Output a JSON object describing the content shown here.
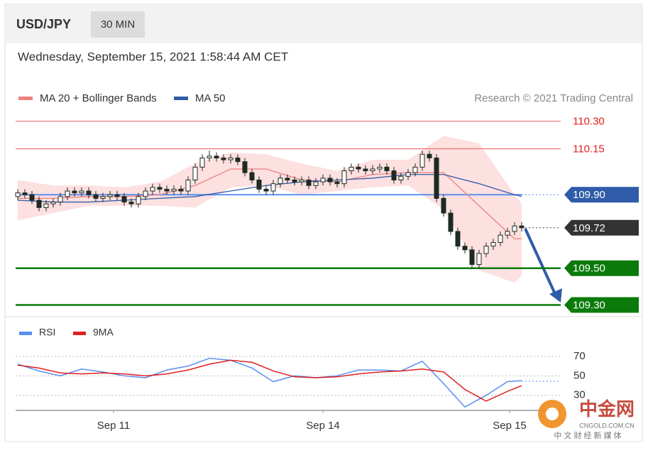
{
  "header": {
    "symbol": "USD/JPY",
    "timeframe": "30 MIN",
    "timestamp": "Wednesday, September 15, 2021 1:58:44 AM CET"
  },
  "watermark": {
    "name": "中金网",
    "site": "CNGOLD.COM.CN",
    "slogan": "中 文 财 经 新 媒 体"
  },
  "chart_data": [
    {
      "type": "candlestick",
      "credit": "Research © 2021 Trading Central",
      "xlim": [
        -0.3,
        76.5
      ],
      "ylim": [
        109.24,
        110.38
      ],
      "up_color": "#ffffff",
      "down_color": "#1e2a22",
      "candles": {
        "x": [
          0,
          1,
          2,
          3,
          4,
          5,
          6,
          7,
          8,
          9,
          10,
          11,
          12,
          13,
          14,
          15,
          16,
          17,
          18,
          19,
          20,
          21,
          22,
          23,
          24,
          25,
          26,
          27,
          28,
          29,
          30,
          31,
          32,
          33,
          34,
          35,
          36,
          37,
          38,
          39,
          40,
          41,
          42,
          43,
          44,
          45,
          46,
          47,
          48,
          49,
          50,
          51,
          52,
          53,
          54,
          55,
          56,
          57,
          58,
          59,
          60,
          61,
          62,
          63,
          64,
          65,
          66,
          67,
          68,
          69,
          70,
          71
        ],
        "open": [
          109.89,
          109.91,
          109.9,
          109.87,
          109.83,
          109.85,
          109.86,
          109.89,
          109.92,
          109.91,
          109.92,
          109.9,
          109.88,
          109.89,
          109.9,
          109.89,
          109.86,
          109.85,
          109.89,
          109.92,
          109.94,
          109.93,
          109.92,
          109.93,
          109.92,
          109.98,
          110.05,
          110.1,
          110.11,
          110.1,
          110.09,
          110.1,
          110.08,
          110.02,
          109.98,
          109.93,
          109.92,
          109.96,
          109.99,
          109.98,
          109.97,
          109.98,
          109.95,
          109.97,
          109.99,
          109.97,
          109.96,
          110.03,
          110.05,
          110.04,
          110.03,
          110.04,
          110.05,
          110.03,
          109.98,
          110,
          110.02,
          110.05,
          110.12,
          110.1,
          109.88,
          109.8,
          109.7,
          109.62,
          109.6,
          109.52,
          109.58,
          109.62,
          109.64,
          109.68,
          109.7,
          109.73
        ],
        "high": [
          109.93,
          109.93,
          109.92,
          109.89,
          109.87,
          109.88,
          109.91,
          109.94,
          109.94,
          109.94,
          109.94,
          109.92,
          109.91,
          109.92,
          109.92,
          109.91,
          109.88,
          109.91,
          109.94,
          109.96,
          109.96,
          109.95,
          109.95,
          109.95,
          110,
          110.07,
          110.12,
          110.14,
          110.13,
          110.12,
          110.12,
          110.12,
          110.1,
          110.04,
          110,
          109.95,
          109.98,
          110.01,
          110.01,
          110,
          110,
          110,
          109.99,
          110.01,
          110.01,
          109.99,
          110.05,
          110.07,
          110.07,
          110.06,
          110.06,
          110.07,
          110.07,
          110.05,
          110.02,
          110.04,
          110.07,
          110.14,
          110.14,
          110.12,
          109.9,
          109.82,
          109.72,
          109.64,
          109.62,
          109.6,
          109.64,
          109.66,
          109.7,
          109.72,
          109.75,
          109.75
        ],
        "low": [
          109.87,
          109.88,
          109.85,
          109.81,
          109.81,
          109.83,
          109.84,
          109.87,
          109.89,
          109.89,
          109.88,
          109.86,
          109.86,
          109.87,
          109.87,
          109.84,
          109.83,
          109.83,
          109.87,
          109.9,
          109.91,
          109.9,
          109.9,
          109.9,
          109.9,
          109.96,
          110.03,
          110.08,
          110.08,
          110.07,
          110.07,
          110.06,
          110,
          109.96,
          109.91,
          109.9,
          109.9,
          109.94,
          109.96,
          109.95,
          109.95,
          109.93,
          109.93,
          109.95,
          109.95,
          109.94,
          109.94,
          110.01,
          110.02,
          110.01,
          110.01,
          110.02,
          110.01,
          109.96,
          109.96,
          109.98,
          110,
          110.03,
          110.08,
          109.86,
          109.78,
          109.68,
          109.6,
          109.58,
          109.5,
          109.5,
          109.56,
          109.6,
          109.62,
          109.66,
          109.68,
          109.7
        ],
        "close": [
          109.91,
          109.9,
          109.87,
          109.83,
          109.85,
          109.86,
          109.89,
          109.92,
          109.91,
          109.92,
          109.9,
          109.88,
          109.89,
          109.9,
          109.89,
          109.86,
          109.85,
          109.89,
          109.92,
          109.94,
          109.93,
          109.92,
          109.93,
          109.92,
          109.98,
          110.05,
          110.1,
          110.11,
          110.1,
          110.09,
          110.1,
          110.08,
          110.02,
          109.98,
          109.93,
          109.92,
          109.96,
          109.99,
          109.98,
          109.97,
          109.98,
          109.95,
          109.97,
          109.99,
          109.97,
          109.96,
          110.03,
          110.05,
          110.04,
          110.03,
          110.04,
          110.05,
          110.03,
          109.98,
          110,
          110.02,
          110.05,
          110.12,
          110.1,
          109.88,
          109.8,
          109.7,
          109.62,
          109.6,
          109.52,
          109.58,
          109.62,
          109.64,
          109.68,
          109.7,
          109.73,
          109.72
        ]
      },
      "series": [
        {
          "name": "MA 20 + Bollinger Bands",
          "color": "#f08080",
          "band_color": "#fde0e0",
          "x": [
            0,
            5,
            10,
            15,
            20,
            25,
            30,
            35,
            40,
            45,
            50,
            55,
            60,
            65,
            70,
            71
          ],
          "values": [
            109.88,
            109.88,
            109.89,
            109.89,
            109.9,
            109.95,
            110.04,
            110.04,
            109.98,
            109.97,
            110.01,
            110.02,
            110.02,
            109.84,
            109.66,
            109.66
          ],
          "upper": [
            109.98,
            109.95,
            109.95,
            109.94,
            109.97,
            110.07,
            110.13,
            110.12,
            110.07,
            110.03,
            110.09,
            110.09,
            110.22,
            110.18,
            109.9,
            109.85
          ],
          "lower": [
            109.76,
            109.8,
            109.84,
            109.84,
            109.84,
            109.83,
            109.94,
            109.95,
            109.9,
            109.92,
            109.94,
            109.95,
            109.82,
            109.49,
            109.42,
            109.46
          ]
        },
        {
          "name": "MA 50",
          "color": "#2f5ca8",
          "x": [
            0,
            5,
            10,
            15,
            20,
            25,
            30,
            35,
            40,
            45,
            50,
            55,
            60,
            65,
            70,
            71
          ],
          "values": [
            109.87,
            109.86,
            109.86,
            109.87,
            109.88,
            109.89,
            109.92,
            109.95,
            109.97,
            109.98,
            109.99,
            110.01,
            110.01,
            109.96,
            109.9,
            109.89
          ]
        }
      ],
      "levels": [
        {
          "value": 110.3,
          "label": "110.30",
          "color": "#f07070",
          "text_color": "#e02020",
          "style": "solid",
          "badge": false
        },
        {
          "value": 110.15,
          "label": "110.15",
          "color": "#f07070",
          "text_color": "#e02020",
          "style": "solid",
          "badge": false
        },
        {
          "value": 109.9,
          "label": "109.90",
          "color": "#5b8ff0",
          "text_color": "#ffffff",
          "style": "solid-dotted",
          "badge": true,
          "badge_color": "#2f5ca8"
        },
        {
          "value": 109.72,
          "label": "109.72",
          "color": "#444444",
          "text_color": "#ffffff",
          "style": "dotted",
          "badge": true,
          "badge_color": "#333333"
        },
        {
          "value": 109.5,
          "label": "109.50",
          "color": "#0a7a0a",
          "text_color": "#ffffff",
          "style": "solid",
          "badge": true,
          "badge_color": "#0a7a0a"
        },
        {
          "value": 109.3,
          "label": "109.30",
          "color": "#0a7a0a",
          "text_color": "#ffffff",
          "style": "solid",
          "badge": true,
          "badge_color": "#0a7a0a"
        }
      ]
    },
    {
      "type": "line",
      "xlim": [
        -0.3,
        76.5
      ],
      "ylim": [
        13,
        86
      ],
      "yticks": [
        70,
        50,
        30
      ],
      "grid": true,
      "xticks": [
        {
          "value": 13.5,
          "label": "Sep 11"
        },
        {
          "value": 43,
          "label": "Sep 14"
        },
        {
          "value": 69.3,
          "label": "Sep 15"
        }
      ],
      "series": [
        {
          "name": "RSI",
          "color": "#5b8ff0",
          "x": [
            0,
            3,
            6,
            9,
            12,
            15,
            18,
            21,
            24,
            27,
            30,
            33,
            36,
            39,
            42,
            45,
            48,
            51,
            54,
            57,
            60,
            63,
            66,
            69,
            71
          ],
          "values": [
            62,
            55,
            50,
            57,
            54,
            50,
            48,
            56,
            60,
            68,
            66,
            58,
            44,
            50,
            48,
            50,
            56,
            56,
            55,
            65,
            42,
            18,
            30,
            44,
            45
          ]
        },
        {
          "name": "9MA",
          "color": "#e02020",
          "x": [
            0,
            3,
            6,
            9,
            12,
            15,
            18,
            21,
            24,
            27,
            30,
            33,
            36,
            39,
            42,
            45,
            48,
            51,
            54,
            57,
            60,
            63,
            66,
            69,
            71
          ],
          "values": [
            61,
            58,
            53,
            52,
            53,
            52,
            50,
            52,
            56,
            62,
            66,
            64,
            55,
            49,
            48,
            49,
            52,
            54,
            55,
            57,
            54,
            36,
            24,
            34,
            40
          ]
        }
      ]
    }
  ]
}
